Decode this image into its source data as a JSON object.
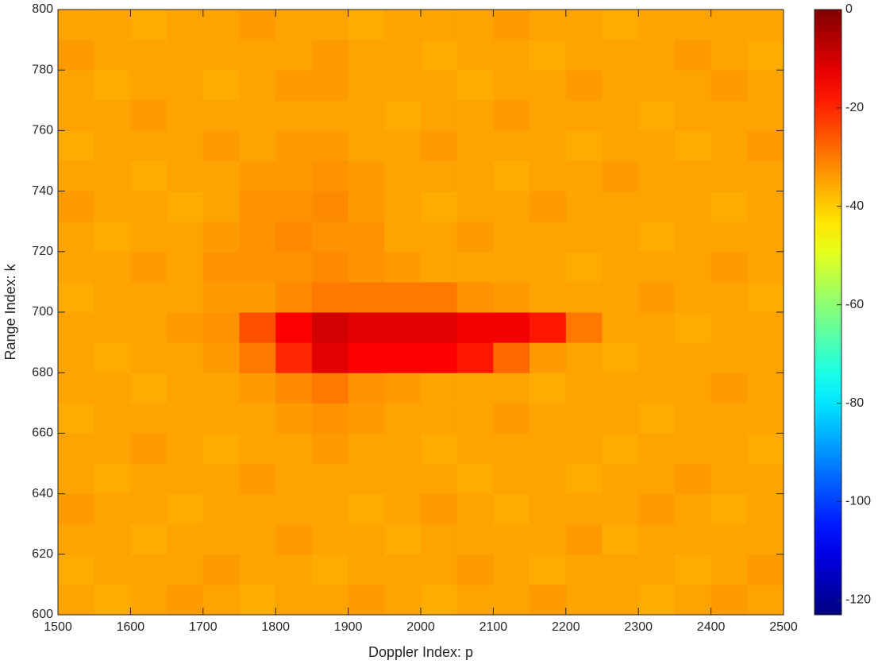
{
  "chart_data": {
    "type": "heatmap",
    "xlabel": "Doppler Index: p",
    "ylabel": "Range Index: k",
    "x": [
      1525,
      1575,
      1625,
      1675,
      1725,
      1775,
      1825,
      1875,
      1925,
      1975,
      2025,
      2075,
      2125,
      2175,
      2225,
      2275,
      2325,
      2375,
      2425,
      2475
    ],
    "y": [
      605,
      615,
      625,
      635,
      645,
      655,
      665,
      675,
      685,
      695,
      705,
      715,
      725,
      735,
      745,
      755,
      765,
      775,
      785,
      795
    ],
    "z": [
      [
        -35,
        -36,
        -35,
        -34,
        -35,
        -36,
        -35,
        -35,
        -34,
        -35,
        -36,
        -35,
        -35,
        -34,
        -35,
        -35,
        -36,
        -35,
        -34,
        -35
      ],
      [
        -36,
        -35,
        -35,
        -35,
        -34,
        -35,
        -35,
        -36,
        -35,
        -35,
        -35,
        -34,
        -35,
        -36,
        -35,
        -35,
        -35,
        -36,
        -35,
        -34
      ],
      [
        -35,
        -35,
        -36,
        -35,
        -35,
        -35,
        -34,
        -35,
        -35,
        -36,
        -35,
        -35,
        -35,
        -35,
        -34,
        -36,
        -35,
        -35,
        -35,
        -35
      ],
      [
        -34,
        -35,
        -35,
        -36,
        -35,
        -35,
        -35,
        -35,
        -36,
        -35,
        -34,
        -35,
        -36,
        -35,
        -35,
        -35,
        -34,
        -35,
        -36,
        -35
      ],
      [
        -35,
        -36,
        -35,
        -35,
        -35,
        -34,
        -35,
        -35,
        -35,
        -35,
        -35,
        -36,
        -35,
        -35,
        -36,
        -35,
        -35,
        -34,
        -35,
        -35
      ],
      [
        -35,
        -35,
        -34,
        -35,
        -36,
        -35,
        -35,
        -34,
        -35,
        -35,
        -36,
        -35,
        -35,
        -35,
        -35,
        -36,
        -35,
        -35,
        -35,
        -36
      ],
      [
        -36,
        -35,
        -35,
        -35,
        -35,
        -35,
        -34,
        -33,
        -34,
        -35,
        -35,
        -35,
        -34,
        -35,
        -35,
        -35,
        -36,
        -35,
        -35,
        -35
      ],
      [
        -35,
        -35,
        -36,
        -35,
        -35,
        -34,
        -32,
        -30,
        -33,
        -34,
        -35,
        -35,
        -35,
        -36,
        -35,
        -35,
        -35,
        -35,
        -34,
        -35
      ],
      [
        -35,
        -36,
        -35,
        -35,
        -34,
        -30,
        -20,
        -12,
        -15,
        -15,
        -15,
        -18,
        -28,
        -34,
        -35,
        -36,
        -35,
        -35,
        -35,
        -35
      ],
      [
        -35,
        -35,
        -35,
        -34,
        -33,
        -25,
        -15,
        -10,
        -12,
        -12,
        -12,
        -14,
        -14,
        -18,
        -30,
        -35,
        -35,
        -36,
        -35,
        -35
      ],
      [
        -36,
        -35,
        -35,
        -35,
        -34,
        -34,
        -32,
        -30,
        -30,
        -30,
        -30,
        -33,
        -34,
        -35,
        -35,
        -35,
        -34,
        -35,
        -35,
        -36
      ],
      [
        -35,
        -35,
        -34,
        -35,
        -33,
        -33,
        -33,
        -32,
        -33,
        -34,
        -35,
        -35,
        -35,
        -35,
        -36,
        -35,
        -35,
        -35,
        -34,
        -35
      ],
      [
        -35,
        -36,
        -35,
        -35,
        -34,
        -33,
        -32,
        -33,
        -33,
        -35,
        -35,
        -34,
        -35,
        -35,
        -35,
        -35,
        -36,
        -35,
        -35,
        -35
      ],
      [
        -34,
        -35,
        -35,
        -36,
        -35,
        -33,
        -33,
        -32,
        -34,
        -35,
        -36,
        -35,
        -35,
        -34,
        -35,
        -35,
        -35,
        -35,
        -36,
        -35
      ],
      [
        -35,
        -35,
        -36,
        -35,
        -35,
        -34,
        -34,
        -33,
        -34,
        -35,
        -35,
        -35,
        -36,
        -35,
        -35,
        -34,
        -35,
        -35,
        -35,
        -35
      ],
      [
        -36,
        -35,
        -35,
        -35,
        -34,
        -35,
        -34,
        -34,
        -35,
        -35,
        -34,
        -35,
        -35,
        -35,
        -36,
        -35,
        -35,
        -36,
        -35,
        -34
      ],
      [
        -35,
        -35,
        -34,
        -35,
        -35,
        -35,
        -35,
        -35,
        -35,
        -36,
        -35,
        -35,
        -34,
        -35,
        -35,
        -35,
        -36,
        -35,
        -35,
        -35
      ],
      [
        -35,
        -36,
        -35,
        -35,
        -36,
        -35,
        -34,
        -34,
        -35,
        -35,
        -35,
        -36,
        -35,
        -35,
        -34,
        -35,
        -35,
        -35,
        -34,
        -35
      ],
      [
        -34,
        -35,
        -35,
        -35,
        -35,
        -35,
        -35,
        -34,
        -35,
        -35,
        -36,
        -35,
        -35,
        -36,
        -35,
        -35,
        -35,
        -34,
        -35,
        -36
      ],
      [
        -35,
        -35,
        -36,
        -35,
        -35,
        -34,
        -35,
        -35,
        -36,
        -35,
        -35,
        -35,
        -34,
        -35,
        -35,
        -36,
        -35,
        -35,
        -35,
        -35
      ]
    ],
    "xlim": [
      1500,
      2500
    ],
    "xticks": [
      1500,
      1600,
      1700,
      1800,
      1900,
      2000,
      2100,
      2200,
      2300,
      2400,
      2500
    ],
    "ylim": [
      600,
      800
    ],
    "yticks": [
      600,
      620,
      640,
      660,
      680,
      700,
      720,
      740,
      760,
      780,
      800
    ],
    "colormap": "jet",
    "clim": [
      -123,
      0
    ],
    "colorbar_ticks": [
      -120,
      -100,
      -80,
      -60,
      -40,
      -20,
      0
    ]
  }
}
